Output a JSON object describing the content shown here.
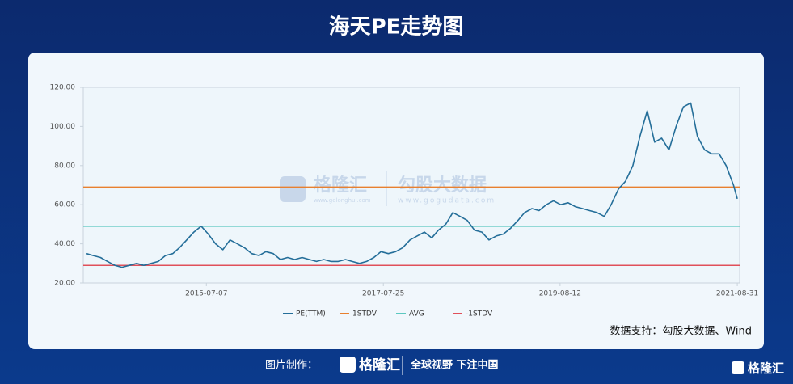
{
  "chart_data": {
    "type": "line",
    "title": "海天PE走势图",
    "x": [
      "2014-02-15",
      "2014-03-15",
      "2014-04-15",
      "2014-05-15",
      "2014-06-15",
      "2014-07-15",
      "2014-08-15",
      "2014-09-15",
      "2014-10-15",
      "2014-11-15",
      "2014-12-15",
      "2015-01-15",
      "2015-02-15",
      "2015-03-15",
      "2015-04-15",
      "2015-05-15",
      "2015-06-15",
      "2015-07-15",
      "2015-08-15",
      "2015-09-15",
      "2015-10-15",
      "2015-11-15",
      "2015-12-15",
      "2016-01-15",
      "2016-02-15",
      "2016-03-15",
      "2016-04-15",
      "2016-05-15",
      "2016-06-15",
      "2016-07-15",
      "2016-08-15",
      "2016-09-15",
      "2016-10-15",
      "2016-11-15",
      "2016-12-15",
      "2017-01-15",
      "2017-02-15",
      "2017-03-15",
      "2017-04-15",
      "2017-05-15",
      "2017-06-15",
      "2017-07-15",
      "2017-08-15",
      "2017-09-15",
      "2017-10-15",
      "2017-11-15",
      "2017-12-15",
      "2018-01-15",
      "2018-02-15",
      "2018-03-15",
      "2018-04-15",
      "2018-05-15",
      "2018-06-15",
      "2018-07-15",
      "2018-08-15",
      "2018-09-15",
      "2018-10-15",
      "2018-11-15",
      "2018-12-15",
      "2019-01-15",
      "2019-02-15",
      "2019-03-15",
      "2019-04-15",
      "2019-05-15",
      "2019-06-15",
      "2019-07-15",
      "2019-08-15",
      "2019-09-15",
      "2019-10-15",
      "2019-11-15",
      "2019-12-15",
      "2020-01-15",
      "2020-02-15",
      "2020-03-15",
      "2020-04-15",
      "2020-05-15",
      "2020-06-15",
      "2020-07-15",
      "2020-08-15",
      "2020-09-15",
      "2020-10-15",
      "2020-11-15",
      "2020-12-15",
      "2021-01-15",
      "2021-02-15",
      "2021-03-15",
      "2021-04-15",
      "2021-05-15",
      "2021-06-15",
      "2021-07-15",
      "2021-08-15",
      "2021-08-31"
    ],
    "series": [
      {
        "name": "PE(TTM)",
        "color": "#246e99",
        "values": [
          35,
          34,
          33,
          31,
          29,
          28,
          29,
          30,
          29,
          30,
          31,
          34,
          35,
          38,
          42,
          46,
          49,
          45,
          40,
          37,
          42,
          40,
          38,
          35,
          34,
          36,
          35,
          32,
          33,
          32,
          33,
          32,
          31,
          32,
          31,
          31,
          32,
          31,
          30,
          31,
          33,
          36,
          35,
          36,
          38,
          42,
          44,
          46,
          43,
          47,
          50,
          56,
          54,
          52,
          47,
          46,
          42,
          44,
          45,
          48,
          52,
          56,
          58,
          57,
          60,
          62,
          60,
          61,
          59,
          58,
          57,
          56,
          54,
          60,
          68,
          72,
          80,
          95,
          108,
          92,
          94,
          88,
          100,
          110,
          112,
          95,
          88,
          86,
          86,
          80,
          70,
          63
        ]
      }
    ],
    "reference_lines": [
      {
        "name": "1STDV",
        "color": "#e8802f",
        "value": 69
      },
      {
        "name": "AVG",
        "color": "#5cc8c0",
        "value": 49
      },
      {
        "name": "-1STDV",
        "color": "#e0505a",
        "value": 29
      }
    ],
    "xlim": [
      "2014-02-01",
      "2021-09-10"
    ],
    "xticks": [
      "2015-07-07",
      "2017-07-25",
      "2019-08-12",
      "2021-08-31"
    ],
    "ylim": [
      20,
      120
    ],
    "yticks": [
      {
        "value": 20,
        "label": "20.00"
      },
      {
        "value": 40,
        "label": "40.00"
      },
      {
        "value": 60,
        "label": "60.00"
      },
      {
        "value": 80,
        "label": "80.00"
      },
      {
        "value": 100,
        "label": "100.00"
      },
      {
        "value": 120,
        "label": "120.00"
      }
    ],
    "grid": false,
    "legend": "bottom",
    "source": "数据支持：勾股大数据、Wind",
    "watermark": {
      "brand1": "格隆汇",
      "url1": "www.gelonghui.com",
      "brand2": "勾股大数据",
      "url2": "www.gogudata.com"
    }
  },
  "footer": {
    "maker": "图片制作：",
    "logo": "格隆汇",
    "slogan": "全球视野 下注中国",
    "corner_logo": "格隆汇"
  }
}
